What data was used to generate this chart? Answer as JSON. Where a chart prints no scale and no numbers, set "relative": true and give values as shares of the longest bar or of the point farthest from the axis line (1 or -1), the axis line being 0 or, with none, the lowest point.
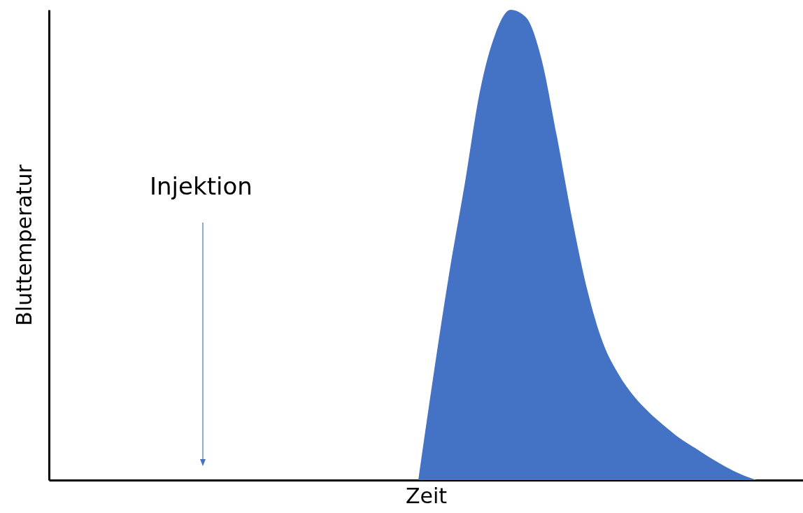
{
  "chart_data": {
    "type": "area",
    "relative": true,
    "xlabel": "Zeit",
    "ylabel": "Bluttemperatur",
    "annotations": [
      "Injektion"
    ],
    "categories": [
      null,
      null,
      null,
      null,
      null,
      null,
      null,
      null,
      null,
      null,
      null,
      null,
      null,
      null,
      null,
      null,
      null,
      null,
      null,
      null,
      null,
      null,
      null,
      null,
      null,
      null,
      null,
      null,
      null,
      null,
      null,
      null,
      null,
      null,
      null,
      null,
      null,
      null,
      null,
      null,
      null,
      null,
      null,
      null,
      null,
      null,
      null,
      null,
      null,
      null
    ],
    "series": [
      {
        "color": "#4472c4",
        "values": [
          null,
          null,
          null,
          null,
          null,
          null,
          null,
          null,
          null,
          null,
          null,
          null,
          null,
          null,
          null,
          null,
          null,
          null,
          null,
          null,
          null,
          null,
          null,
          null,
          0,
          0.226,
          0.438,
          0.626,
          0.826,
          0.948,
          1,
          0.984,
          0.896,
          0.732,
          0.555,
          0.402,
          0.292,
          0.226,
          0.179,
          0.144,
          0.115,
          0.089,
          0.068,
          0.047,
          0.028,
          0.012,
          0,
          null,
          null,
          null
        ]
      }
    ]
  }
}
